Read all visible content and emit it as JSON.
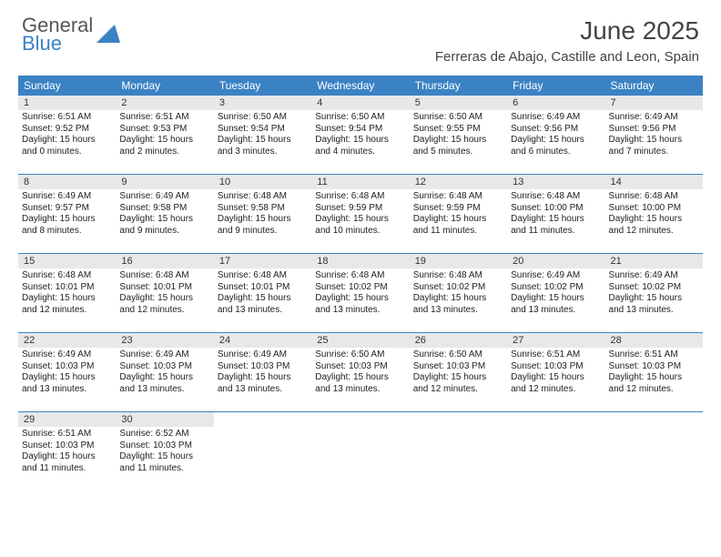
{
  "logo": {
    "line1": "General",
    "line2": "Blue"
  },
  "colors": {
    "accent": "#3b82c4",
    "daybar": "#e8e8e8",
    "text": "#222"
  },
  "title": "June 2025",
  "location": "Ferreras de Abajo, Castille and Leon, Spain",
  "weekdays": [
    "Sunday",
    "Monday",
    "Tuesday",
    "Wednesday",
    "Thursday",
    "Friday",
    "Saturday"
  ],
  "weeks": [
    [
      {
        "n": "1",
        "sr": "6:51 AM",
        "ss": "9:52 PM",
        "dl": "15 hours and 0 minutes."
      },
      {
        "n": "2",
        "sr": "6:51 AM",
        "ss": "9:53 PM",
        "dl": "15 hours and 2 minutes."
      },
      {
        "n": "3",
        "sr": "6:50 AM",
        "ss": "9:54 PM",
        "dl": "15 hours and 3 minutes."
      },
      {
        "n": "4",
        "sr": "6:50 AM",
        "ss": "9:54 PM",
        "dl": "15 hours and 4 minutes."
      },
      {
        "n": "5",
        "sr": "6:50 AM",
        "ss": "9:55 PM",
        "dl": "15 hours and 5 minutes."
      },
      {
        "n": "6",
        "sr": "6:49 AM",
        "ss": "9:56 PM",
        "dl": "15 hours and 6 minutes."
      },
      {
        "n": "7",
        "sr": "6:49 AM",
        "ss": "9:56 PM",
        "dl": "15 hours and 7 minutes."
      }
    ],
    [
      {
        "n": "8",
        "sr": "6:49 AM",
        "ss": "9:57 PM",
        "dl": "15 hours and 8 minutes."
      },
      {
        "n": "9",
        "sr": "6:49 AM",
        "ss": "9:58 PM",
        "dl": "15 hours and 9 minutes."
      },
      {
        "n": "10",
        "sr": "6:48 AM",
        "ss": "9:58 PM",
        "dl": "15 hours and 9 minutes."
      },
      {
        "n": "11",
        "sr": "6:48 AM",
        "ss": "9:59 PM",
        "dl": "15 hours and 10 minutes."
      },
      {
        "n": "12",
        "sr": "6:48 AM",
        "ss": "9:59 PM",
        "dl": "15 hours and 11 minutes."
      },
      {
        "n": "13",
        "sr": "6:48 AM",
        "ss": "10:00 PM",
        "dl": "15 hours and 11 minutes."
      },
      {
        "n": "14",
        "sr": "6:48 AM",
        "ss": "10:00 PM",
        "dl": "15 hours and 12 minutes."
      }
    ],
    [
      {
        "n": "15",
        "sr": "6:48 AM",
        "ss": "10:01 PM",
        "dl": "15 hours and 12 minutes."
      },
      {
        "n": "16",
        "sr": "6:48 AM",
        "ss": "10:01 PM",
        "dl": "15 hours and 12 minutes."
      },
      {
        "n": "17",
        "sr": "6:48 AM",
        "ss": "10:01 PM",
        "dl": "15 hours and 13 minutes."
      },
      {
        "n": "18",
        "sr": "6:48 AM",
        "ss": "10:02 PM",
        "dl": "15 hours and 13 minutes."
      },
      {
        "n": "19",
        "sr": "6:48 AM",
        "ss": "10:02 PM",
        "dl": "15 hours and 13 minutes."
      },
      {
        "n": "20",
        "sr": "6:49 AM",
        "ss": "10:02 PM",
        "dl": "15 hours and 13 minutes."
      },
      {
        "n": "21",
        "sr": "6:49 AM",
        "ss": "10:02 PM",
        "dl": "15 hours and 13 minutes."
      }
    ],
    [
      {
        "n": "22",
        "sr": "6:49 AM",
        "ss": "10:03 PM",
        "dl": "15 hours and 13 minutes."
      },
      {
        "n": "23",
        "sr": "6:49 AM",
        "ss": "10:03 PM",
        "dl": "15 hours and 13 minutes."
      },
      {
        "n": "24",
        "sr": "6:49 AM",
        "ss": "10:03 PM",
        "dl": "15 hours and 13 minutes."
      },
      {
        "n": "25",
        "sr": "6:50 AM",
        "ss": "10:03 PM",
        "dl": "15 hours and 13 minutes."
      },
      {
        "n": "26",
        "sr": "6:50 AM",
        "ss": "10:03 PM",
        "dl": "15 hours and 12 minutes."
      },
      {
        "n": "27",
        "sr": "6:51 AM",
        "ss": "10:03 PM",
        "dl": "15 hours and 12 minutes."
      },
      {
        "n": "28",
        "sr": "6:51 AM",
        "ss": "10:03 PM",
        "dl": "15 hours and 12 minutes."
      }
    ],
    [
      {
        "n": "29",
        "sr": "6:51 AM",
        "ss": "10:03 PM",
        "dl": "15 hours and 11 minutes."
      },
      {
        "n": "30",
        "sr": "6:52 AM",
        "ss": "10:03 PM",
        "dl": "15 hours and 11 minutes."
      },
      null,
      null,
      null,
      null,
      null
    ]
  ],
  "labels": {
    "sunrise": "Sunrise:",
    "sunset": "Sunset:",
    "daylight": "Daylight:"
  }
}
